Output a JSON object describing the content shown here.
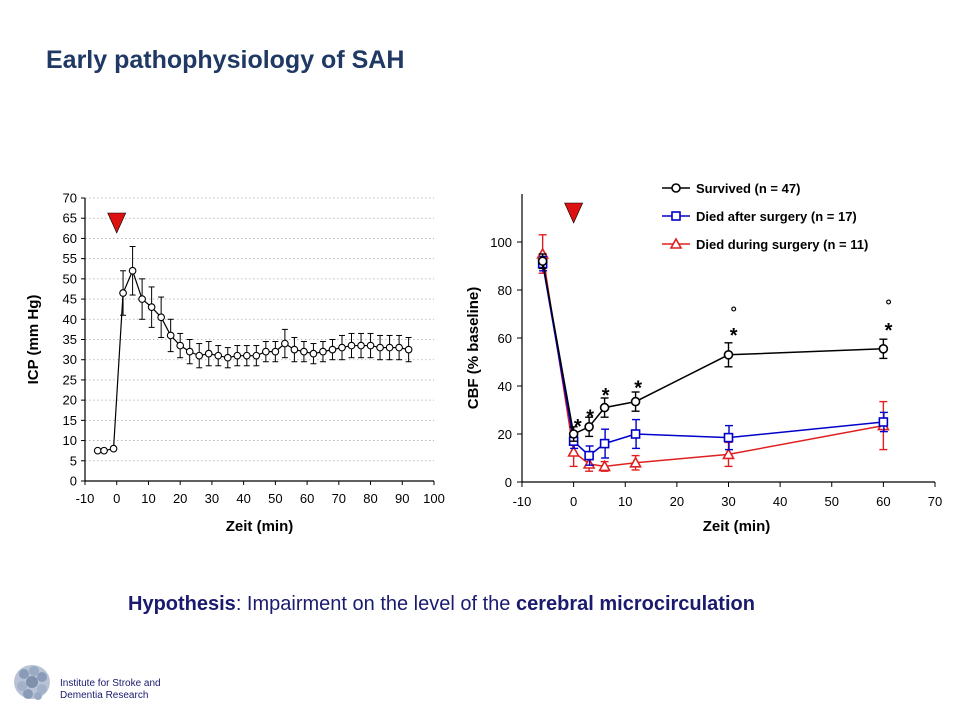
{
  "slide": {
    "title": "Early pathophysiology of SAH",
    "hypothesis_bold1": "Hypothesis",
    "hypothesis_mid": ": Impairment on the level of the ",
    "hypothesis_bold2": "cerebral microcirculation",
    "institute_line1": "Institute for Stroke and",
    "institute_line2": "Dementia Research"
  },
  "colors": {
    "navy": "#1f3864",
    "black": "#000000",
    "blue": "#0000cc",
    "red": "#e02020",
    "marker_red": "#dd1111"
  },
  "chart_data": [
    {
      "type": "line",
      "xlabel": "Zeit (min)",
      "ylabel": "ICP (mm Hg)",
      "xlim": [
        -10,
        100
      ],
      "ylim": [
        0,
        70
      ],
      "xticks": [
        -10,
        0,
        10,
        20,
        30,
        40,
        50,
        60,
        70,
        80,
        90,
        100
      ],
      "yticks": [
        0,
        5,
        10,
        15,
        20,
        25,
        30,
        35,
        40,
        45,
        50,
        55,
        60,
        65,
        70
      ],
      "grid": "horizontal dotted",
      "event_marker_x": 0,
      "series": [
        {
          "x": [
            -6,
            -4,
            -1,
            2,
            5,
            8,
            11,
            14,
            17,
            20,
            23,
            26,
            29,
            32,
            35,
            38,
            41,
            44,
            47,
            50,
            53,
            56,
            59,
            62,
            65,
            68,
            71,
            74,
            77,
            80,
            83,
            86,
            89,
            92
          ],
          "y": [
            7.5,
            7.5,
            8,
            46.5,
            52,
            45,
            43,
            40.5,
            36,
            33.5,
            32,
            31,
            31.5,
            31,
            30.5,
            31,
            31,
            31,
            32,
            32,
            34,
            32.5,
            32,
            31.5,
            32,
            32.5,
            33,
            33.5,
            33.5,
            33.5,
            33,
            33,
            33,
            32.5
          ],
          "err": [
            0,
            0,
            0,
            5.5,
            6,
            5,
            5,
            5,
            4,
            3,
            3,
            3,
            3,
            2.5,
            2.5,
            2.5,
            2.5,
            2.5,
            2.5,
            2.5,
            3.5,
            3,
            2.5,
            2.5,
            2.5,
            2.5,
            3,
            3,
            3,
            3,
            3,
            3,
            3,
            3
          ]
        }
      ]
    },
    {
      "type": "line",
      "xlabel": "Zeit (min)",
      "ylabel": "CBF (% baseline)",
      "xlim": [
        -10,
        70
      ],
      "ylim": [
        0,
        120
      ],
      "xticks": [
        -10,
        0,
        10,
        20,
        30,
        40,
        50,
        60,
        70
      ],
      "yticks": [
        0,
        20,
        40,
        60,
        80,
        100
      ],
      "legend": "top-right",
      "event_marker_x": 0,
      "series": [
        {
          "name": "Survived (n = 47)",
          "marker": "circle",
          "color": "#000000",
          "x": [
            -6,
            0,
            3,
            6,
            12,
            30,
            60
          ],
          "y": [
            92,
            20,
            23,
            31,
            33.5,
            53,
            55.5
          ],
          "err": [
            3,
            3,
            4,
            4,
            4,
            5,
            4
          ]
        },
        {
          "name": "Died after surgery (n = 17)",
          "marker": "square",
          "color": "#0000cc",
          "x": [
            -6,
            0,
            3,
            6,
            12,
            30,
            60
          ],
          "y": [
            91,
            17,
            11,
            16,
            20,
            18.5,
            25
          ],
          "err": [
            3,
            3,
            4,
            6,
            6,
            5,
            4
          ]
        },
        {
          "name": "Died during surgery (n = 11)",
          "marker": "triangle",
          "color": "#e02020",
          "x": [
            -6,
            0,
            3,
            6,
            12,
            30,
            60
          ],
          "y": [
            95,
            12.5,
            7.5,
            6.5,
            8,
            11.5,
            23.5
          ],
          "err": [
            8,
            6,
            3,
            2,
            3,
            5,
            10
          ]
        }
      ],
      "annotations": [
        {
          "text": "*",
          "x": 0.8,
          "y": 25
        },
        {
          "text": "*",
          "x": 3.2,
          "y": 29
        },
        {
          "text": "*",
          "x": 6.2,
          "y": 38
        },
        {
          "text": "*",
          "x": 12.5,
          "y": 41
        },
        {
          "text": "*",
          "x": 31,
          "y": 63
        },
        {
          "text": "*",
          "x": 61,
          "y": 65
        },
        {
          "text": "°",
          "x": 31,
          "y": 71
        },
        {
          "text": "°",
          "x": 61,
          "y": 74
        }
      ]
    }
  ]
}
